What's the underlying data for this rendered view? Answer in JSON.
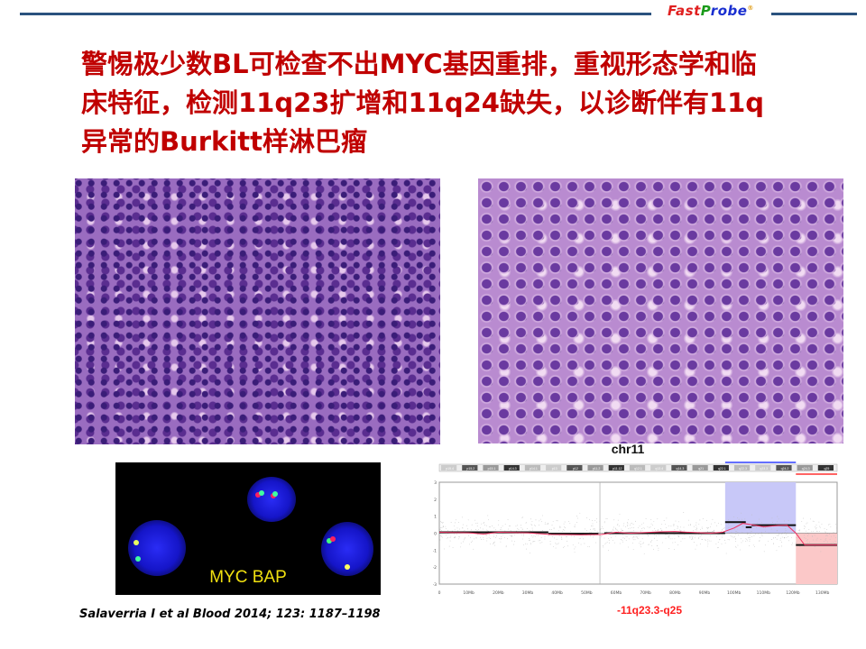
{
  "header": {
    "logo_text": "FastProbe",
    "logo_mark": "®"
  },
  "title": {
    "lines": [
      "警惕极少数BL可检查不出MYC基因重排，重视形态学和临",
      "床特征，检测11q23扩增和11q24缺失，以诊断伴有11q",
      "异常的Burkitt样淋巴瘤"
    ],
    "color": "#c00000"
  },
  "images": {
    "left": "histology-he-stain-low",
    "right": "histology-he-stain-high"
  },
  "fish": {
    "label": "MYC BAP"
  },
  "citation": "Salaverria I et al Blood 2014; 123: 1187–1198",
  "cnv": {
    "title": "chr11",
    "annotation": "-11q23.3-q25",
    "bands": [
      "p15.4",
      "p15.2",
      "p15.1",
      "p14.3",
      "p14.1",
      "p13",
      "p12",
      "p11.2",
      "p11.12",
      "q12.1",
      "q13.4",
      "q14.3",
      "q21",
      "q22.1",
      "q22.3",
      "q23.3",
      "q24.2",
      "q24.3",
      "q25"
    ],
    "x_ticks": [
      "0",
      "10Mb",
      "20Mb",
      "30Mb",
      "40Mb",
      "50Mb",
      "60Mb",
      "70Mb",
      "80Mb",
      "90Mb",
      "100Mb",
      "110Mb",
      "120Mb",
      "130Mb"
    ],
    "y_ticks": [
      "3",
      "2",
      "1",
      "0",
      "-1",
      "-2",
      "-3"
    ],
    "xlim": [
      0,
      135
    ],
    "ylim": [
      -3,
      3
    ],
    "gain_region_mb": [
      97,
      121
    ],
    "loss_region_mb": [
      121,
      135
    ],
    "gain_color": "#c8c8f8",
    "loss_color": "#fbc8c8",
    "segments": [
      [
        0,
        37,
        0.05
      ],
      [
        37,
        54,
        -0.03
      ],
      [
        56,
        97,
        0
      ],
      [
        97,
        104,
        0.65
      ],
      [
        104,
        106,
        0.35
      ],
      [
        106,
        121,
        0.47
      ],
      [
        121,
        135,
        -0.7
      ]
    ],
    "smooth": [
      [
        0,
        0.05
      ],
      [
        10,
        0.02
      ],
      [
        15,
        -0.05
      ],
      [
        20,
        0.05
      ],
      [
        30,
        0.02
      ],
      [
        38,
        -0.08
      ],
      [
        48,
        -0.1
      ],
      [
        55,
        -0.08
      ],
      [
        60,
        0.05
      ],
      [
        65,
        0.0
      ],
      [
        75,
        0.08
      ],
      [
        80,
        0.1
      ],
      [
        85,
        0.05
      ],
      [
        92,
        0.0
      ],
      [
        96,
        0.05
      ],
      [
        100,
        0.3
      ],
      [
        103,
        0.58
      ],
      [
        106,
        0.5
      ],
      [
        110,
        0.38
      ],
      [
        115,
        0.45
      ],
      [
        118,
        0.47
      ],
      [
        121,
        0.0
      ],
      [
        124,
        -0.7
      ],
      [
        135,
        -0.7
      ]
    ]
  }
}
